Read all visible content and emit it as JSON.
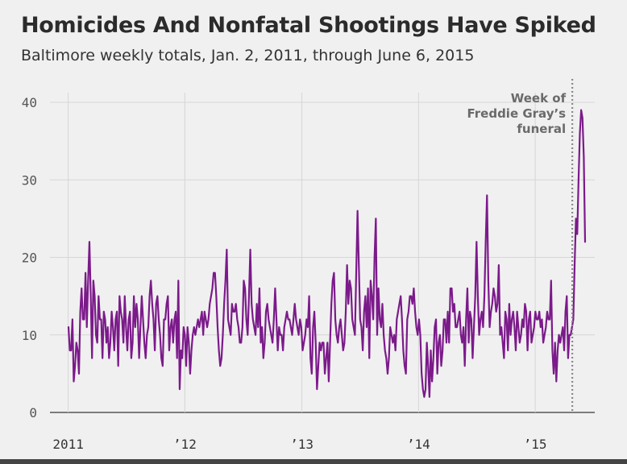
{
  "chart_data": {
    "type": "line",
    "title": "Homicides And Nonfatal Shootings Have Spiked",
    "subtitle": "Baltimore weekly totals, Jan. 2, 2011, through June 6, 2015",
    "xlabel": "",
    "ylabel": "",
    "x_ticks": [
      {
        "label": "2011",
        "year": 2011
      },
      {
        "label": "’12",
        "year": 2012
      },
      {
        "label": "’13",
        "year": 2013
      },
      {
        "label": "’14",
        "year": 2014
      },
      {
        "label": "’15",
        "year": 2015
      }
    ],
    "y_ticks": [
      0,
      10,
      20,
      30,
      40
    ],
    "ylim": [
      0,
      40
    ],
    "xlim": [
      "2011-01-02",
      "2015-06-06"
    ],
    "grid": true,
    "line_color": "#7b1a8a",
    "annotation": {
      "lines": [
        "Week of",
        "Freddie Gray’s",
        "funeral"
      ],
      "date": "2015-04-27"
    },
    "series": [
      {
        "values": [
          11,
          8,
          8,
          12,
          4,
          6,
          9,
          8,
          5,
          13,
          16,
          12,
          12,
          18,
          11,
          17,
          22,
          15,
          7,
          17,
          15,
          10,
          9,
          15,
          12,
          12,
          7,
          13,
          12,
          9,
          11,
          7,
          9,
          13,
          11,
          8,
          12,
          13,
          6,
          15,
          13,
          12,
          9,
          15,
          11,
          8,
          12,
          13,
          7,
          9,
          15,
          11,
          14,
          12,
          7,
          11,
          15,
          12,
          9,
          7,
          10,
          11,
          15,
          17,
          14,
          12,
          8,
          14,
          15,
          12,
          10,
          7,
          6,
          12,
          12,
          14,
          15,
          8,
          11,
          12,
          9,
          12,
          13,
          7,
          17,
          3,
          8,
          7,
          11,
          10,
          6,
          11,
          9,
          5,
          8,
          10,
          11,
          10,
          11,
          12,
          11,
          12,
          13,
          10,
          13,
          12,
          11,
          12,
          14,
          15,
          16,
          18,
          18,
          15,
          11,
          8,
          6,
          7,
          10,
          14,
          17,
          21,
          12,
          11,
          10,
          14,
          13,
          13,
          14,
          12,
          11,
          9,
          9,
          11,
          17,
          16,
          12,
          10,
          15,
          21,
          14,
          12,
          11,
          10,
          14,
          11,
          16,
          9,
          11,
          7,
          9,
          13,
          14,
          12,
          11,
          10,
          9,
          12,
          16,
          12,
          8,
          11,
          10,
          10,
          8,
          11,
          12,
          13,
          12,
          12,
          11,
          10,
          12,
          14,
          12,
          11,
          10,
          12,
          11,
          8,
          9,
          10,
          12,
          11,
          15,
          7,
          5,
          11,
          13,
          9,
          3,
          6,
          9,
          8,
          9,
          9,
          5,
          7,
          9,
          4,
          9,
          14,
          17,
          18,
          12,
          10,
          9,
          11,
          12,
          10,
          8,
          9,
          13,
          19,
          14,
          17,
          16,
          12,
          11,
          10,
          18,
          26,
          19,
          12,
          11,
          8,
          13,
          15,
          11,
          16,
          7,
          17,
          15,
          12,
          20,
          25,
          10,
          16,
          12,
          11,
          14,
          10,
          8,
          7,
          5,
          7,
          11,
          10,
          9,
          10,
          8,
          12,
          13,
          14,
          15,
          12,
          8,
          6,
          5,
          12,
          13,
          15,
          15,
          14,
          16,
          13,
          11,
          10,
          12,
          10,
          5,
          3,
          2,
          3,
          9,
          6,
          2,
          8,
          4,
          7,
          11,
          12,
          5,
          9,
          10,
          6,
          8,
          12,
          12,
          9,
          13,
          9,
          16,
          16,
          13,
          14,
          11,
          11,
          12,
          13,
          10,
          9,
          11,
          6,
          12,
          16,
          9,
          13,
          12,
          7,
          11,
          15,
          22,
          15,
          10,
          12,
          13,
          11,
          15,
          22,
          28,
          17,
          11,
          13,
          14,
          16,
          15,
          13,
          14,
          19,
          10,
          11,
          9,
          7,
          13,
          12,
          8,
          14,
          10,
          12,
          13,
          11,
          8,
          13,
          11,
          9,
          10,
          12,
          11,
          14,
          13,
          8,
          12,
          13,
          9,
          10,
          11,
          13,
          12,
          12,
          13,
          11,
          12,
          9,
          10,
          11,
          13,
          12,
          12,
          17,
          8,
          5,
          9,
          4,
          8,
          10,
          9,
          10,
          11,
          8,
          13,
          15,
          7,
          10,
          10,
          11,
          12,
          19,
          25,
          23,
          30,
          36,
          39,
          38,
          33,
          22
        ]
      }
    ]
  }
}
